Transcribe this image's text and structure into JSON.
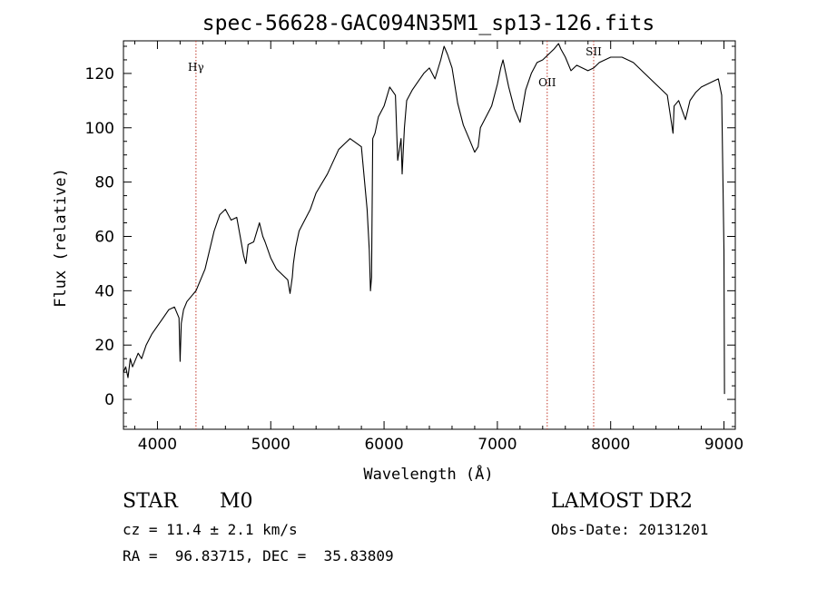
{
  "chart_data": {
    "type": "line",
    "title": "spec-56628-GAC094N35M1_sp13-126.fits",
    "xlabel": "Wavelength (Å)",
    "ylabel": "Flux (relative)",
    "xlim": [
      3700,
      9100
    ],
    "ylim": [
      -11,
      132
    ],
    "xticks": [
      4000,
      5000,
      6000,
      7000,
      8000,
      9000
    ],
    "yticks": [
      0,
      20,
      40,
      60,
      80,
      100,
      120
    ],
    "series": [
      {
        "name": "spectrum",
        "x": [
          3700,
          3720,
          3740,
          3760,
          3780,
          3800,
          3830,
          3860,
          3900,
          3950,
          4000,
          4050,
          4100,
          4150,
          4190,
          4200,
          4210,
          4230,
          4260,
          4300,
          4340,
          4380,
          4420,
          4460,
          4500,
          4550,
          4600,
          4650,
          4700,
          4730,
          4760,
          4780,
          4800,
          4850,
          4900,
          4930,
          4950,
          5000,
          5050,
          5100,
          5150,
          5170,
          5190,
          5200,
          5220,
          5250,
          5300,
          5350,
          5400,
          5500,
          5600,
          5700,
          5800,
          5850,
          5870,
          5880,
          5890,
          5900,
          5920,
          5950,
          6000,
          6050,
          6100,
          6120,
          6150,
          6160,
          6170,
          6180,
          6200,
          6250,
          6300,
          6350,
          6400,
          6450,
          6500,
          6530,
          6560,
          6600,
          6650,
          6700,
          6750,
          6800,
          6830,
          6850,
          6900,
          6950,
          7000,
          7030,
          7050,
          7100,
          7150,
          7200,
          7250,
          7300,
          7350,
          7400,
          7450,
          7500,
          7540,
          7560,
          7600,
          7650,
          7700,
          7750,
          7800,
          7850,
          7900,
          8000,
          8100,
          8200,
          8250,
          8300,
          8400,
          8500,
          8550,
          8560,
          8600,
          8660,
          8700,
          8750,
          8800,
          8850,
          8900,
          8950,
          8980,
          9000,
          9005
        ],
        "values": [
          10,
          12,
          8,
          15,
          12,
          14,
          17,
          15,
          20,
          24,
          27,
          30,
          33,
          34,
          30,
          14,
          28,
          33,
          36,
          38,
          40,
          44,
          48,
          55,
          62,
          68,
          70,
          66,
          67,
          60,
          53,
          50,
          57,
          58,
          65,
          60,
          58,
          52,
          48,
          46,
          44,
          39,
          45,
          50,
          56,
          62,
          66,
          70,
          76,
          83,
          92,
          96,
          93,
          70,
          55,
          40,
          45,
          96,
          98,
          104,
          108,
          115,
          112,
          88,
          96,
          83,
          92,
          100,
          110,
          114,
          117,
          120,
          122,
          118,
          125,
          130,
          127,
          122,
          109,
          101,
          96,
          91,
          93,
          100,
          104,
          108,
          116,
          122,
          125,
          115,
          107,
          102,
          114,
          120,
          124,
          125,
          127,
          129,
          131,
          129,
          126,
          121,
          123,
          122,
          121,
          122,
          124,
          126,
          126,
          124,
          122,
          120,
          116,
          112,
          98,
          108,
          110,
          103,
          110,
          113,
          115,
          116,
          117,
          118,
          112,
          55,
          2
        ]
      }
    ],
    "line_markers": [
      {
        "label": "Hγ",
        "x": 4340
      },
      {
        "label": "OII",
        "x": 7440
      },
      {
        "label": "SII",
        "x": 7850
      }
    ],
    "colors": {
      "line": "#000000",
      "marker": "#c0392b",
      "axes": "#000000"
    }
  },
  "info": {
    "object_class": "STAR",
    "subclass": "M0",
    "survey": "LAMOST DR2",
    "redshift": "cz = 11.4 ± 2.1 km/s",
    "obs_date": "Obs-Date: 20131201",
    "coords": "RA =  96.83715, DEC =  35.83809"
  }
}
